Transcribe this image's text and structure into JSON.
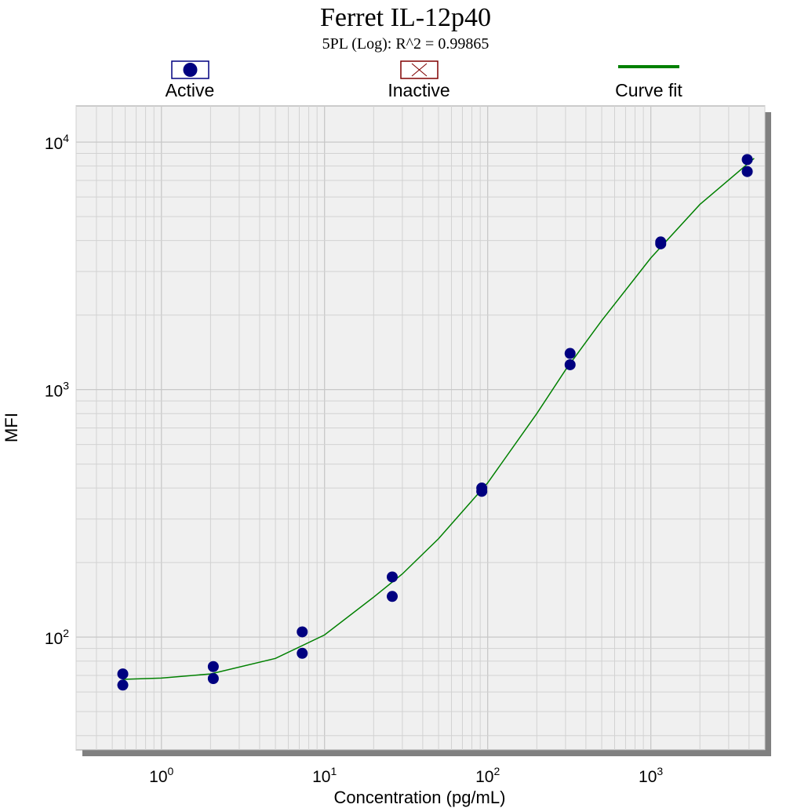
{
  "chart_data": {
    "type": "scatter",
    "title": "Ferret IL-12p40",
    "subtitle": "5PL (Log): R^2 = 0.99865",
    "xlabel": "Concentration (pg/mL)",
    "ylabel": "MFI",
    "x_scale": "log",
    "y_scale": "log",
    "xlim": [
      0.3,
      5000
    ],
    "ylim": [
      35,
      14000
    ],
    "grid": true,
    "legend_position": "top",
    "x_ticks": [
      {
        "value": 1,
        "base": "10",
        "exp": "0"
      },
      {
        "value": 10,
        "base": "10",
        "exp": "1"
      },
      {
        "value": 100,
        "base": "10",
        "exp": "2"
      },
      {
        "value": 1000,
        "base": "10",
        "exp": "3"
      }
    ],
    "y_ticks": [
      {
        "value": 100,
        "base": "10",
        "exp": "2"
      },
      {
        "value": 1000,
        "base": "10",
        "exp": "3"
      },
      {
        "value": 10000,
        "base": "10",
        "exp": "4"
      }
    ],
    "legend": [
      {
        "key": "active",
        "label": "Active"
      },
      {
        "key": "inactive",
        "label": "Inactive"
      },
      {
        "key": "fit",
        "label": "Curve fit"
      }
    ],
    "series": [
      {
        "name": "Active",
        "color": "#000080",
        "points": [
          {
            "x": 0.58,
            "y": 71
          },
          {
            "x": 0.58,
            "y": 64
          },
          {
            "x": 2.08,
            "y": 76
          },
          {
            "x": 2.08,
            "y": 68
          },
          {
            "x": 7.3,
            "y": 105
          },
          {
            "x": 7.3,
            "y": 86
          },
          {
            "x": 26,
            "y": 175
          },
          {
            "x": 26,
            "y": 146
          },
          {
            "x": 92,
            "y": 400
          },
          {
            "x": 92,
            "y": 388
          },
          {
            "x": 320,
            "y": 1400
          },
          {
            "x": 320,
            "y": 1260
          },
          {
            "x": 1150,
            "y": 3950
          },
          {
            "x": 1150,
            "y": 3880
          },
          {
            "x": 3900,
            "y": 8500
          },
          {
            "x": 3900,
            "y": 7600
          }
        ]
      },
      {
        "name": "Curve fit",
        "color": "#008000",
        "points": [
          {
            "x": 0.58,
            "y": 67.5
          },
          {
            "x": 1,
            "y": 68.3
          },
          {
            "x": 2,
            "y": 71
          },
          {
            "x": 5,
            "y": 82
          },
          {
            "x": 10,
            "y": 102
          },
          {
            "x": 20,
            "y": 145
          },
          {
            "x": 30,
            "y": 180
          },
          {
            "x": 50,
            "y": 250
          },
          {
            "x": 100,
            "y": 420
          },
          {
            "x": 200,
            "y": 800
          },
          {
            "x": 300,
            "y": 1200
          },
          {
            "x": 500,
            "y": 1900
          },
          {
            "x": 1000,
            "y": 3400
          },
          {
            "x": 2000,
            "y": 5600
          },
          {
            "x": 4300,
            "y": 8600
          }
        ]
      }
    ],
    "inactive_color": "#800000",
    "plot_background": "#f0f0f0",
    "shadow_color": "#808080"
  }
}
